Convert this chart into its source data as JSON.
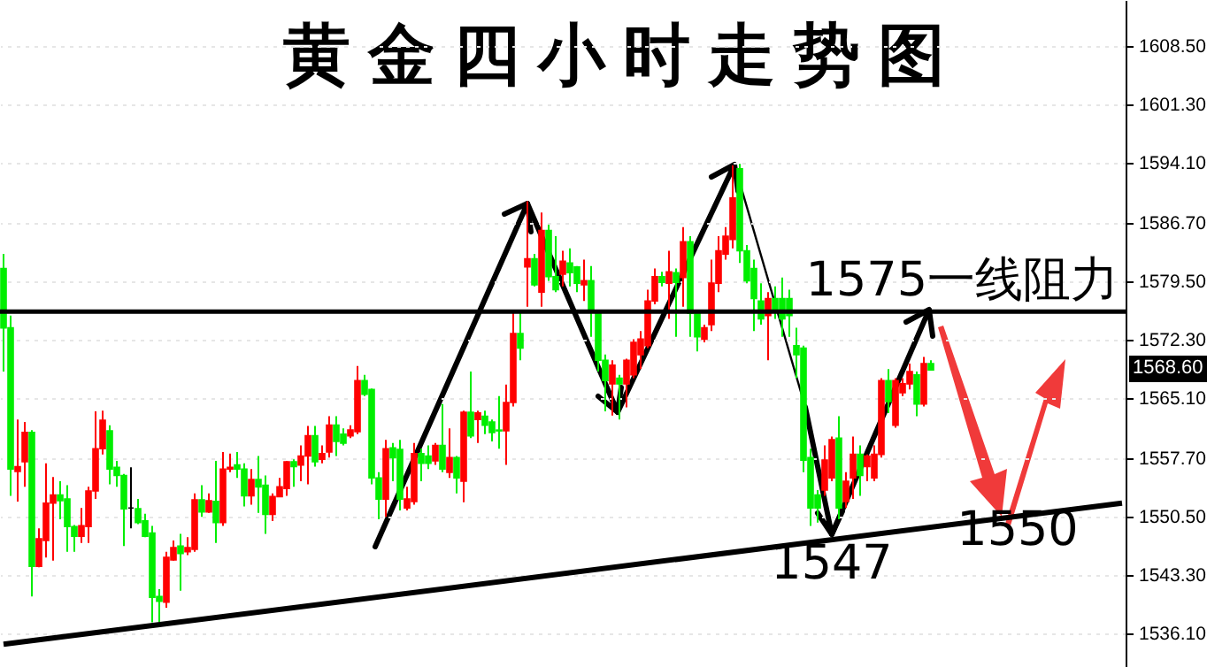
{
  "chart_data": {
    "type": "candlestick",
    "title": "黄金四小时走势图",
    "categories": [
      null,
      null,
      null,
      null,
      null,
      null,
      null,
      null,
      null,
      null,
      null,
      null,
      null,
      null,
      null,
      null,
      null,
      null,
      null,
      null,
      null,
      null,
      null,
      null,
      null,
      null,
      null,
      null,
      null,
      null,
      null,
      null,
      null,
      null,
      null,
      null,
      null,
      null,
      null,
      null,
      null,
      null,
      null,
      null,
      null,
      null,
      null,
      null,
      null,
      null,
      null,
      null,
      null,
      null,
      null,
      null,
      null,
      null,
      null,
      null,
      null,
      null,
      null,
      null,
      null,
      null,
      null,
      null,
      null,
      null,
      null,
      null,
      null,
      null,
      null,
      null,
      null,
      null,
      null,
      null,
      null,
      null,
      null,
      null,
      null,
      null,
      null,
      null,
      null,
      null,
      null,
      null,
      null,
      null,
      null,
      null,
      null,
      null,
      null,
      null,
      null,
      null,
      null,
      null,
      null,
      null,
      null,
      null,
      null,
      null,
      null,
      null,
      null,
      null,
      null,
      null,
      null,
      null,
      null,
      null,
      null,
      null,
      null,
      null,
      null,
      null,
      null,
      null,
      null,
      null,
      null,
      null,
      null,
      null,
      null,
      null,
      null,
      null,
      null,
      null,
      null,
      null,
      null,
      null,
      null,
      null,
      null,
      null,
      null,
      null,
      null,
      null,
      null,
      null,
      null,
      null,
      null,
      null,
      null
    ],
    "ohlc": [
      [
        1581.1,
        1582.9,
        1568.4,
        1573.8
      ],
      [
        1573.8,
        1575.3,
        1553.1,
        1556.4
      ],
      [
        1556.1,
        1562.5,
        1552.4,
        1556.7
      ],
      [
        1557.3,
        1562.2,
        1554.2,
        1560.9
      ],
      [
        1560.9,
        1561.2,
        1540.7,
        1544.4
      ],
      [
        1544.4,
        1549.1,
        1544.3,
        1547.8
      ],
      [
        1547.6,
        1557.1,
        1545.5,
        1552.2
      ],
      [
        1552.2,
        1555.4,
        1545.1,
        1553.2
      ],
      [
        1553.2,
        1554.9,
        1550.2,
        1552.5
      ],
      [
        1552.7,
        1554.4,
        1546.2,
        1549.3
      ],
      [
        1549.3,
        1549.5,
        1546.2,
        1548.1
      ],
      [
        1548.1,
        1551.6,
        1547.3,
        1549.4
      ],
      [
        1549.3,
        1554.2,
        1547.3,
        1553.7
      ],
      [
        1553.7,
        1563.5,
        1552.7,
        1558.9
      ],
      [
        1558.9,
        1563.6,
        1558.2,
        1562.4
      ],
      [
        1561.1,
        1561.8,
        1554.5,
        1556.4
      ],
      [
        1556.6,
        1557.4,
        1554.2,
        1555.6
      ],
      [
        1555.6,
        1555.8,
        1546.9,
        1551.5
      ],
      [
        1551.6,
        1556.6,
        1549.1,
        1551.6
      ],
      [
        1551.5,
        1552.7,
        1549.6,
        1549.8
      ],
      [
        1550.0,
        1550.9,
        1548.0,
        1548.1
      ],
      [
        1548.5,
        1549.4,
        1537.5,
        1540.6
      ],
      [
        1540.7,
        1541.6,
        1537.5,
        1540.1
      ],
      [
        1540.0,
        1546.2,
        1539.3,
        1545.5
      ],
      [
        1545.2,
        1547.6,
        1545.1,
        1546.7
      ],
      [
        1546.9,
        1548.4,
        1541.4,
        1546.0
      ],
      [
        1546.2,
        1548.0,
        1545.8,
        1546.7
      ],
      [
        1546.5,
        1553.4,
        1546.2,
        1552.6
      ],
      [
        1552.6,
        1554.4,
        1550.5,
        1551.1
      ],
      [
        1551.1,
        1553.4,
        1551.0,
        1552.5
      ],
      [
        1552.4,
        1557.4,
        1547.3,
        1549.8
      ],
      [
        1549.8,
        1558.5,
        1549.4,
        1556.4
      ],
      [
        1556.4,
        1558.3,
        1556.0,
        1556.6
      ],
      [
        1556.9,
        1558.5,
        1555.3,
        1556.4
      ],
      [
        1556.4,
        1557.1,
        1551.8,
        1553.1
      ],
      [
        1553.1,
        1556.4,
        1552.0,
        1555.1
      ],
      [
        1555.1,
        1558.0,
        1551.0,
        1554.2
      ],
      [
        1554.4,
        1555.6,
        1548.4,
        1550.8
      ],
      [
        1550.8,
        1553.4,
        1550.0,
        1553.0
      ],
      [
        1553.0,
        1555.3,
        1553.0,
        1554.2
      ],
      [
        1554.0,
        1557.4,
        1553.1,
        1557.3
      ],
      [
        1557.3,
        1557.6,
        1554.2,
        1556.7
      ],
      [
        1556.9,
        1559.3,
        1554.9,
        1558.0
      ],
      [
        1558.0,
        1561.7,
        1554.5,
        1560.5
      ],
      [
        1560.5,
        1561.7,
        1556.7,
        1557.3
      ],
      [
        1557.6,
        1559.3,
        1557.1,
        1558.3
      ],
      [
        1558.5,
        1562.9,
        1557.8,
        1561.8
      ],
      [
        1561.8,
        1562.9,
        1558.0,
        1559.8
      ],
      [
        1560.7,
        1561.4,
        1559.3,
        1559.6
      ],
      [
        1560.5,
        1561.8,
        1560.2,
        1561.2
      ],
      [
        1561.0,
        1569.1,
        1560.7,
        1567.3
      ],
      [
        1567.3,
        1568.0,
        1565.4,
        1565.6
      ],
      [
        1566.2,
        1566.3,
        1554.5,
        1555.3
      ],
      [
        1555.3,
        1556.0,
        1550.2,
        1552.7
      ],
      [
        1552.7,
        1560.0,
        1550.5,
        1558.9
      ],
      [
        1559.0,
        1559.6,
        1554.9,
        1557.8
      ],
      [
        1558.8,
        1560.0,
        1551.3,
        1552.7
      ],
      [
        1551.6,
        1554.2,
        1551.3,
        1552.7
      ],
      [
        1552.4,
        1559.6,
        1552.0,
        1558.3
      ],
      [
        1558.3,
        1558.9,
        1554.9,
        1557.1
      ],
      [
        1558.0,
        1559.3,
        1556.4,
        1557.1
      ],
      [
        1557.4,
        1559.6,
        1556.9,
        1559.3
      ],
      [
        1559.3,
        1564.4,
        1556.0,
        1556.4
      ],
      [
        1556.0,
        1561.4,
        1555.3,
        1557.8
      ],
      [
        1557.8,
        1558.0,
        1553.4,
        1555.3
      ],
      [
        1554.9,
        1563.6,
        1552.3,
        1563.4
      ],
      [
        1563.4,
        1568.4,
        1560.2,
        1560.5
      ],
      [
        1562.5,
        1563.6,
        1559.6,
        1563.3
      ],
      [
        1562.9,
        1563.6,
        1560.7,
        1561.8
      ],
      [
        1562.2,
        1562.5,
        1559.8,
        1560.9
      ],
      [
        1561.2,
        1565.4,
        1558.9,
        1561.1
      ],
      [
        1561.1,
        1566.8,
        1556.9,
        1564.6
      ],
      [
        1564.6,
        1575.6,
        1564.1,
        1573.1
      ],
      [
        1573.1,
        1575.6,
        1569.8,
        1571.3
      ],
      [
        1581.3,
        1589.4,
        1576.4,
        1582.3
      ],
      [
        1582.3,
        1582.9,
        1578.9,
        1579.1
      ],
      [
        1578.2,
        1588.0,
        1576.4,
        1585.8
      ],
      [
        1585.8,
        1586.5,
        1579.6,
        1580.1
      ],
      [
        1580.1,
        1585.1,
        1578.2,
        1578.5
      ],
      [
        1580.4,
        1583.3,
        1578.9,
        1582.0
      ],
      [
        1581.8,
        1583.6,
        1578.9,
        1580.6
      ],
      [
        1581.3,
        1581.4,
        1578.2,
        1579.3
      ],
      [
        1579.1,
        1582.2,
        1577.1,
        1579.6
      ],
      [
        1579.6,
        1581.4,
        1572.7,
        1576.0
      ],
      [
        1575.6,
        1576.0,
        1568.4,
        1569.8
      ],
      [
        1569.8,
        1570.5,
        1563.5,
        1567.3
      ],
      [
        1566.9,
        1569.8,
        1563.0,
        1569.2
      ],
      [
        1567.6,
        1568.0,
        1562.5,
        1566.9
      ],
      [
        1566.9,
        1570.0,
        1564.0,
        1569.8
      ],
      [
        1568.0,
        1572.4,
        1567.6,
        1572.0
      ],
      [
        1570.5,
        1573.4,
        1568.7,
        1572.4
      ],
      [
        1571.6,
        1578.5,
        1571.3,
        1577.1
      ],
      [
        1577.1,
        1581.1,
        1576.7,
        1580.1
      ],
      [
        1580.1,
        1580.7,
        1578.9,
        1579.4
      ],
      [
        1579.3,
        1583.3,
        1574.9,
        1580.7
      ],
      [
        1580.6,
        1581.1,
        1572.7,
        1579.4
      ],
      [
        1580.0,
        1586.2,
        1576.4,
        1584.4
      ],
      [
        1584.4,
        1585.1,
        1572.7,
        1575.6
      ],
      [
        1575.6,
        1575.8,
        1570.9,
        1572.7
      ],
      [
        1572.4,
        1574.2,
        1572.0,
        1573.8
      ],
      [
        1574.2,
        1582.2,
        1573.4,
        1579.3
      ],
      [
        1579.3,
        1585.1,
        1578.2,
        1583.3
      ],
      [
        1582.9,
        1586.2,
        1582.2,
        1585.1
      ],
      [
        1584.7,
        1593.8,
        1583.6,
        1589.8
      ],
      [
        1593.4,
        1594.0,
        1581.8,
        1583.3
      ],
      [
        1583.3,
        1584.0,
        1579.3,
        1579.6
      ],
      [
        1581.1,
        1582.2,
        1573.4,
        1577.4
      ],
      [
        1577.1,
        1579.3,
        1574.2,
        1574.9
      ],
      [
        1575.3,
        1578.2,
        1569.8,
        1577.4
      ],
      [
        1577.4,
        1578.9,
        1574.9,
        1576.0
      ],
      [
        1577.4,
        1580.0,
        1572.7,
        1574.9
      ],
      [
        1577.4,
        1578.5,
        1572.7,
        1575.3
      ],
      [
        1571.6,
        1573.8,
        1567.6,
        1570.5
      ],
      [
        1571.3,
        1571.6,
        1556.0,
        1557.5
      ],
      [
        1557.8,
        1558.9,
        1549.4,
        1551.6
      ],
      [
        1553.2,
        1553.8,
        1549.8,
        1551.6
      ],
      [
        1553.8,
        1559.3,
        1553.1,
        1557.5
      ],
      [
        1555.3,
        1560.4,
        1554.9,
        1560.0
      ],
      [
        1560.2,
        1562.9,
        1550.2,
        1551.6
      ],
      [
        1552.4,
        1556.0,
        1551.6,
        1554.9
      ],
      [
        1555.3,
        1560.4,
        1552.7,
        1558.2
      ],
      [
        1558.2,
        1559.3,
        1553.1,
        1555.6
      ],
      [
        1556.7,
        1558.2,
        1554.9,
        1558.0
      ],
      [
        1555.3,
        1559.3,
        1554.9,
        1558.2
      ],
      [
        1558.2,
        1567.6,
        1557.8,
        1567.3
      ],
      [
        1567.3,
        1568.7,
        1563.3,
        1564.7
      ],
      [
        1561.8,
        1567.6,
        1561.5,
        1567.3
      ],
      [
        1565.8,
        1567.6,
        1565.4,
        1566.9
      ],
      [
        1566.9,
        1569.4,
        1566.2,
        1568.4
      ],
      [
        1568.0,
        1568.4,
        1562.9,
        1564.4
      ],
      [
        1564.4,
        1570.2,
        1564.1,
        1569.4
      ],
      [
        1569.4,
        1569.8,
        1568.6,
        1568.6
      ],
      null,
      null,
      null,
      null,
      null,
      null,
      null,
      null,
      null,
      null,
      null,
      null,
      null,
      null,
      null,
      null,
      null,
      null,
      null,
      null,
      null,
      null,
      null,
      null,
      null,
      null,
      null
    ],
    "colors": [
      "#00ee00",
      "#00ee00",
      "#ff0000",
      "#ff0000",
      "#00ee00",
      "#ff0000",
      "#ff0000",
      "#ff0000",
      "#00ee00",
      "#00ee00",
      "#00ee00",
      "#ff0000",
      "#ff0000",
      "#ff0000",
      "#ff0000",
      "#00ee00",
      "#00ee00",
      "#00ee00",
      "#000000",
      "#00ee00",
      "#00ee00",
      "#00ee00",
      "#00ee00",
      "#ff0000",
      "#ff0000",
      "#00ee00",
      "#ff0000",
      "#ff0000",
      "#00ee00",
      "#ff0000",
      "#00ee00",
      "#ff0000",
      "#ff0000",
      "#00ee00",
      "#00ee00",
      "#ff0000",
      "#00ee00",
      "#00ee00",
      "#ff0000",
      "#ff0000",
      "#ff0000",
      "#00ee00",
      "#ff0000",
      "#ff0000",
      "#00ee00",
      "#ff0000",
      "#ff0000",
      "#00ee00",
      "#00ee00",
      "#ff0000",
      "#ff0000",
      "#00ee00",
      "#00ee00",
      "#00ee00",
      "#ff0000",
      "#00ee00",
      "#00ee00",
      "#ff0000",
      "#ff0000",
      "#00ee00",
      "#00ee00",
      "#ff0000",
      "#00ee00",
      "#ff0000",
      "#00ee00",
      "#ff0000",
      "#00ee00",
      "#ff0000",
      "#00ee00",
      "#00ee00",
      "#00ee00",
      "#ff0000",
      "#ff0000",
      "#00ee00",
      "#ff0000",
      "#00ee00",
      "#ff0000",
      "#00ee00",
      "#00ee00",
      "#ff0000",
      "#00ee00",
      "#00ee00",
      "#ff0000",
      "#00ee00",
      "#00ee00",
      "#00ee00",
      "#ff0000",
      "#00ee00",
      "#ff0000",
      "#ff0000",
      "#ff0000",
      "#ff0000",
      "#ff0000",
      "#00ee00",
      "#ff0000",
      "#00ee00",
      "#ff0000",
      "#00ee00",
      "#00ee00",
      "#ff0000",
      "#ff0000",
      "#ff0000",
      "#ff0000",
      "#ff0000",
      "#00ee00",
      "#00ee00",
      "#00ee00",
      "#00ee00",
      "#ff0000",
      "#00ee00",
      "#00ee00",
      "#00ee00",
      "#00ee00",
      "#00ee00",
      "#00ee00",
      "#00ee00",
      "#ff0000",
      "#ff0000",
      "#00ee00",
      "#ff0000",
      "#ff0000",
      "#00ee00",
      "#ff0000",
      "#ff0000",
      "#ff0000",
      "#00ee00",
      "#ff0000",
      "#ff0000",
      "#ff0000",
      "#00ee00",
      "#ff0000",
      "#00ee00",
      null,
      null,
      null,
      null,
      null,
      null,
      null,
      null,
      null,
      null,
      null,
      null,
      null,
      null,
      null,
      null,
      null,
      null,
      null,
      null,
      null,
      null,
      null,
      null,
      null,
      null,
      null
    ],
    "series": [
      {
        "type": "line",
        "color": "#000000",
        "values": [
          1534.8,
          null,
          null,
          null,
          null,
          null,
          null,
          null,
          null,
          null,
          null,
          null,
          null,
          null,
          null,
          null,
          null,
          null,
          null,
          null,
          null,
          null,
          null,
          null,
          null,
          null,
          null,
          null,
          null,
          null,
          null,
          null,
          null,
          null,
          null,
          null,
          null,
          null,
          null,
          null,
          null,
          null,
          null,
          null,
          null,
          null,
          null,
          null,
          null,
          null,
          null,
          null,
          null,
          null,
          null,
          null,
          null,
          null,
          null,
          null,
          null,
          null,
          null,
          null,
          null,
          null,
          null,
          null,
          null,
          null,
          null,
          null,
          null,
          null,
          null,
          null,
          null,
          null,
          null,
          null,
          null,
          null,
          null,
          null,
          null,
          null,
          null,
          null,
          null,
          null,
          null,
          null,
          null,
          null,
          null,
          null,
          null,
          null,
          null,
          null,
          null,
          null,
          null,
          null,
          null,
          null,
          null,
          null,
          null,
          null,
          null,
          null,
          null,
          null,
          null,
          null,
          null,
          null,
          null,
          null,
          null,
          null,
          null,
          null,
          null,
          null,
          null,
          null,
          null,
          null,
          null,
          null,
          null,
          null,
          null,
          null,
          null,
          null,
          null,
          null,
          null,
          null,
          null,
          null,
          null,
          null,
          null,
          null,
          null,
          null,
          null,
          null,
          null,
          null,
          null,
          null,
          null,
          null,
          1552.2
        ]
      }
    ],
    "ylim": [
      1532,
      1614.2
    ],
    "yticks": [
      {
        "value": 1608.5,
        "label": "1608.50"
      },
      {
        "value": 1601.3,
        "label": "1601.30"
      },
      {
        "value": 1594.1,
        "label": "1594.10"
      },
      {
        "value": 1586.7,
        "label": "1586.70"
      },
      {
        "value": 1579.5,
        "label": "1579.50"
      },
      {
        "value": 1572.3,
        "label": "1572.30"
      },
      {
        "value": 1565.1,
        "label": "1565.10"
      },
      {
        "value": 1557.7,
        "label": "1557.70"
      },
      {
        "value": 1550.5,
        "label": "1550.50"
      },
      {
        "value": 1543.3,
        "label": "1543.30"
      },
      {
        "value": 1536.1,
        "label": "1536.10"
      }
    ],
    "grid": "y",
    "ref_lines": [
      {
        "axis": "y",
        "value": 1575.8,
        "label": "1575一线阻力",
        "color": "#000000"
      }
    ],
    "annotations": [
      "1547",
      "1550",
      {
        "text": "1568.60",
        "y": 1568.6
      }
    ]
  }
}
